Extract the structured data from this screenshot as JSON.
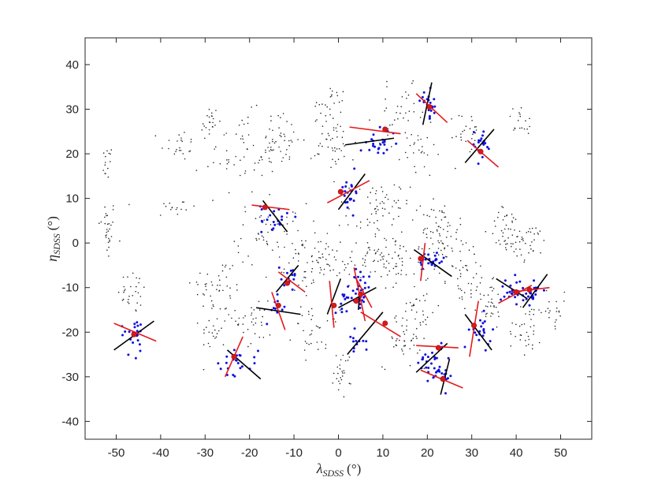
{
  "chart_data": {
    "type": "scatter",
    "title": "",
    "xlabel": "λSDSS (°)",
    "xlabel_parts": {
      "sym": "λ",
      "sub": "SDSS",
      "unit": "(°)"
    },
    "ylabel": "ηSDSS (°)",
    "ylabel_parts": {
      "sym": "η",
      "sub": "SDSS",
      "unit": "(°)"
    },
    "xlim": [
      -57,
      57
    ],
    "ylim": [
      -44,
      46
    ],
    "x_ticks": [
      -50,
      -40,
      -30,
      -20,
      -10,
      0,
      10,
      20,
      30,
      40,
      50
    ],
    "y_ticks": [
      -40,
      -30,
      -20,
      -10,
      0,
      10,
      20,
      30,
      40
    ],
    "grid": false,
    "legend": "none",
    "colors": {
      "background": "#262626",
      "selected": "#1010e0",
      "fit_line": "#000000",
      "alt_line": "#e41a1c",
      "center": "#d7191c"
    },
    "background_clusters": [
      {
        "x": -52,
        "y": 3,
        "n": 30,
        "sx": 1.0,
        "sy": 3.5
      },
      {
        "x": -52,
        "y": 18,
        "n": 14,
        "sx": 0.6,
        "sy": 2.0
      },
      {
        "x": -46,
        "y": -11,
        "n": 28,
        "sx": 1.8,
        "sy": 2.5
      },
      {
        "x": -36,
        "y": 22,
        "n": 22,
        "sx": 2.0,
        "sy": 1.8
      },
      {
        "x": -37,
        "y": 8,
        "n": 16,
        "sx": 2.5,
        "sy": 1.3
      },
      {
        "x": -29,
        "y": 27,
        "n": 20,
        "sx": 1.0,
        "sy": 2.0
      },
      {
        "x": -27,
        "y": -10,
        "n": 45,
        "sx": 3.0,
        "sy": 3.5
      },
      {
        "x": -28,
        "y": -20,
        "n": 22,
        "sx": 1.5,
        "sy": 2.0
      },
      {
        "x": -22,
        "y": 20,
        "n": 60,
        "sx": 4.0,
        "sy": 4.5
      },
      {
        "x": -19,
        "y": -17,
        "n": 35,
        "sx": 2.0,
        "sy": 4.0
      },
      {
        "x": -13,
        "y": 23,
        "n": 40,
        "sx": 2.5,
        "sy": 3.0
      },
      {
        "x": -15,
        "y": 2,
        "n": 60,
        "sx": 4.0,
        "sy": 3.5
      },
      {
        "x": -6,
        "y": -5,
        "n": 45,
        "sx": 3.0,
        "sy": 4.0
      },
      {
        "x": -5,
        "y": -20,
        "n": 35,
        "sx": 2.5,
        "sy": 2.5
      },
      {
        "x": -3,
        "y": 30,
        "n": 14,
        "sx": 2.0,
        "sy": 3.0
      },
      {
        "x": -1,
        "y": 22,
        "n": 45,
        "sx": 2.5,
        "sy": 3.0
      },
      {
        "x": 0,
        "y": 33,
        "n": 10,
        "sx": 1.0,
        "sy": 1.0
      },
      {
        "x": 3,
        "y": -4,
        "n": 60,
        "sx": 5.0,
        "sy": 2.0
      },
      {
        "x": 1,
        "y": -29,
        "n": 25,
        "sx": 1.0,
        "sy": 2.5
      },
      {
        "x": 9,
        "y": 7,
        "n": 70,
        "sx": 3.5,
        "sy": 3.5
      },
      {
        "x": 12,
        "y": -3,
        "n": 35,
        "sx": 3.0,
        "sy": 2.5
      },
      {
        "x": 14,
        "y": -22,
        "n": 30,
        "sx": 2.0,
        "sy": 3.0
      },
      {
        "x": 14,
        "y": 29,
        "n": 35,
        "sx": 3.0,
        "sy": 3.0
      },
      {
        "x": 18,
        "y": 20,
        "n": 25,
        "sx": 2.0,
        "sy": 3.0
      },
      {
        "x": 17,
        "y": -15,
        "n": 45,
        "sx": 2.5,
        "sy": 5.0
      },
      {
        "x": 23,
        "y": 3,
        "n": 65,
        "sx": 2.0,
        "sy": 4.0
      },
      {
        "x": 28,
        "y": -7,
        "n": 55,
        "sx": 3.0,
        "sy": 4.5
      },
      {
        "x": 29,
        "y": 25,
        "n": 25,
        "sx": 1.5,
        "sy": 2.5
      },
      {
        "x": 34,
        "y": -14,
        "n": 30,
        "sx": 1.5,
        "sy": 3.0
      },
      {
        "x": 38,
        "y": 3,
        "n": 40,
        "sx": 2.0,
        "sy": 2.5
      },
      {
        "x": 41,
        "y": 27,
        "n": 18,
        "sx": 1.5,
        "sy": 2.0
      },
      {
        "x": 43,
        "y": 0,
        "n": 35,
        "sx": 2.0,
        "sy": 2.0
      },
      {
        "x": 42,
        "y": -19,
        "n": 30,
        "sx": 2.0,
        "sy": 3.0
      },
      {
        "x": 48,
        "y": -15,
        "n": 25,
        "sx": 2.0,
        "sy": 2.0
      }
    ],
    "fits": [
      {
        "cx": -46.0,
        "cy": -20.5,
        "n": 22,
        "sx": 1.5,
        "sy": 2.3,
        "black": [
          [
            -50.5,
            -24.0
          ],
          [
            -41.5,
            -17.5
          ]
        ],
        "red": [
          [
            -50.5,
            -18.0
          ],
          [
            -41.0,
            -22.0
          ]
        ],
        "dot": [
          -46.0,
          -20.5
        ]
      },
      {
        "cx": -23.0,
        "cy": -26.5,
        "n": 22,
        "sx": 2.5,
        "sy": 1.5,
        "black": [
          [
            -25.0,
            -24.0
          ],
          [
            -17.5,
            -30.5
          ]
        ],
        "red": [
          [
            -25.5,
            -30.0
          ],
          [
            -21.5,
            -21.0
          ]
        ],
        "dot": [
          -23.5,
          -25.5
        ]
      },
      {
        "cx": -14.5,
        "cy": 5.0,
        "n": 20,
        "sx": 1.5,
        "sy": 2.0,
        "black": [
          [
            -17.0,
            9.5
          ],
          [
            -11.5,
            2.5
          ]
        ],
        "red": [
          [
            -19.5,
            8.5
          ],
          [
            -11.0,
            7.5
          ]
        ],
        "dot": [
          -16.5,
          8.0
        ]
      },
      {
        "cx": -11.0,
        "cy": -7.0,
        "n": 14,
        "sx": 1.0,
        "sy": 1.5,
        "black": [
          [
            -14.0,
            -11.0
          ],
          [
            -9.0,
            -5.0
          ]
        ],
        "red": [
          [
            -13.5,
            -6.5
          ],
          [
            -7.5,
            -11.0
          ]
        ],
        "dot": [
          -11.5,
          -9.0
        ]
      },
      {
        "cx": -13.5,
        "cy": -15.0,
        "n": 12,
        "sx": 0.8,
        "sy": 1.5,
        "black": [
          [
            -18.5,
            -14.5
          ],
          [
            -8.5,
            -16.0
          ]
        ],
        "red": [
          [
            -15.0,
            -11.0
          ],
          [
            -12.0,
            -19.5
          ]
        ],
        "dot": [
          -13.5,
          -14.0
        ]
      },
      {
        "cx": 2.5,
        "cy": 11.5,
        "n": 22,
        "sx": 1.0,
        "sy": 2.0,
        "black": [
          [
            0.0,
            7.5
          ],
          [
            6.0,
            15.5
          ]
        ],
        "red": [
          [
            -2.5,
            9.0
          ],
          [
            7.0,
            14.0
          ]
        ],
        "dot": [
          0.5,
          11.5
        ]
      },
      {
        "cx": 2.0,
        "cy": -12.0,
        "n": 15,
        "sx": 1.5,
        "sy": 1.5,
        "black": [
          [
            -2.5,
            -16.0
          ],
          [
            0.5,
            -8.0
          ]
        ],
        "red": [
          [
            -2.0,
            -8.5
          ],
          [
            -1.0,
            -19.0
          ]
        ],
        "dot": [
          -1.0,
          -14.0
        ]
      },
      {
        "cx": 5.0,
        "cy": -10.5,
        "n": 18,
        "sx": 1.0,
        "sy": 2.2,
        "black": [
          [
            0.0,
            -14.5
          ],
          [
            8.5,
            -10.0
          ]
        ],
        "red": [
          [
            3.5,
            -5.5
          ],
          [
            6.0,
            -17.5
          ]
        ],
        "dot": [
          4.0,
          -13.0
        ]
      },
      {
        "cx": 5.0,
        "cy": -13.0,
        "n": 6,
        "sx": 0.5,
        "sy": 1.0,
        "black": [
          [
            4.5,
            -15.0
          ],
          [
            4.8,
            -11.0
          ]
        ],
        "red": [
          [
            4.0,
            -8.0
          ],
          [
            7.5,
            -14.5
          ]
        ],
        "dot": [
          5.0,
          -11.5
        ]
      },
      {
        "cx": 4.0,
        "cy": -22.0,
        "n": 12,
        "sx": 1.0,
        "sy": 1.5,
        "black": [
          [
            2.0,
            -25.0
          ],
          [
            10.0,
            -15.5
          ]
        ],
        "red": [
          [
            5.0,
            -15.5
          ],
          [
            14.0,
            -21.0
          ]
        ],
        "dot": [
          10.5,
          -18.0
        ]
      },
      {
        "cx": 9.0,
        "cy": 22.5,
        "n": 24,
        "sx": 2.0,
        "sy": 1.5,
        "black": [
          [
            1.5,
            22.0
          ],
          [
            12.5,
            23.5
          ]
        ],
        "red": [
          [
            2.5,
            26.0
          ],
          [
            14.0,
            24.5
          ]
        ],
        "dot": [
          10.5,
          25.5
        ]
      },
      {
        "cx": 20.5,
        "cy": 31.0,
        "n": 22,
        "sx": 1.0,
        "sy": 1.5,
        "black": [
          [
            19.0,
            26.5
          ],
          [
            21.0,
            36.0
          ]
        ],
        "red": [
          [
            17.5,
            33.5
          ],
          [
            24.5,
            27.0
          ]
        ],
        "dot": [
          20.5,
          30.5
        ]
      },
      {
        "cx": 32.0,
        "cy": 22.0,
        "n": 20,
        "sx": 1.2,
        "sy": 1.8,
        "black": [
          [
            28.5,
            18.0
          ],
          [
            35.0,
            25.5
          ]
        ],
        "red": [
          [
            29.0,
            23.0
          ],
          [
            36.0,
            17.0
          ]
        ],
        "dot": [
          32.0,
          20.5
        ]
      },
      {
        "cx": 21.0,
        "cy": -4.0,
        "n": 25,
        "sx": 1.5,
        "sy": 1.0,
        "black": [
          [
            17.0,
            -1.5
          ],
          [
            25.5,
            -7.5
          ]
        ],
        "red": [
          [
            18.5,
            -8.5
          ],
          [
            19.5,
            0.0
          ]
        ],
        "dot": [
          18.5,
          -3.5
        ]
      },
      {
        "cx": 21.0,
        "cy": -26.5,
        "n": 30,
        "sx": 1.5,
        "sy": 2.5,
        "black": [
          [
            17.5,
            -29.0
          ],
          [
            24.5,
            -22.5
          ]
        ],
        "red": [
          [
            17.5,
            -23.0
          ],
          [
            27.0,
            -23.5
          ]
        ],
        "dot": [
          22.5,
          -23.5
        ]
      },
      {
        "cx": 24.0,
        "cy": -30.0,
        "n": 12,
        "sx": 1.0,
        "sy": 1.0,
        "black": [
          [
            23.0,
            -34.0
          ],
          [
            25.0,
            -26.0
          ]
        ],
        "red": [
          [
            18.5,
            -28.5
          ],
          [
            28.0,
            -32.5
          ]
        ],
        "dot": [
          23.5,
          -30.5
        ]
      },
      {
        "cx": 32.0,
        "cy": -20.0,
        "n": 22,
        "sx": 1.2,
        "sy": 1.8,
        "black": [
          [
            28.5,
            -16.0
          ],
          [
            34.5,
            -24.0
          ]
        ],
        "red": [
          [
            29.5,
            -25.5
          ],
          [
            31.5,
            -13.0
          ]
        ],
        "dot": [
          30.5,
          -18.5
        ]
      },
      {
        "cx": 40.5,
        "cy": -10.5,
        "n": 30,
        "sx": 2.0,
        "sy": 1.5,
        "black": [
          [
            35.5,
            -8.0
          ],
          [
            42.5,
            -12.5
          ]
        ],
        "red": [
          [
            36.0,
            -13.5
          ],
          [
            43.5,
            -9.5
          ]
        ],
        "dot": [
          40.0,
          -11.0
        ]
      },
      {
        "cx": 43.5,
        "cy": -12.0,
        "n": 15,
        "sx": 0.8,
        "sy": 1.5,
        "black": [
          [
            41.5,
            -14.5
          ],
          [
            47.0,
            -7.0
          ]
        ],
        "red": [
          [
            39.0,
            -11.0
          ],
          [
            47.5,
            -10.0
          ]
        ],
        "dot": [
          43.0,
          -10.5
        ]
      }
    ]
  }
}
